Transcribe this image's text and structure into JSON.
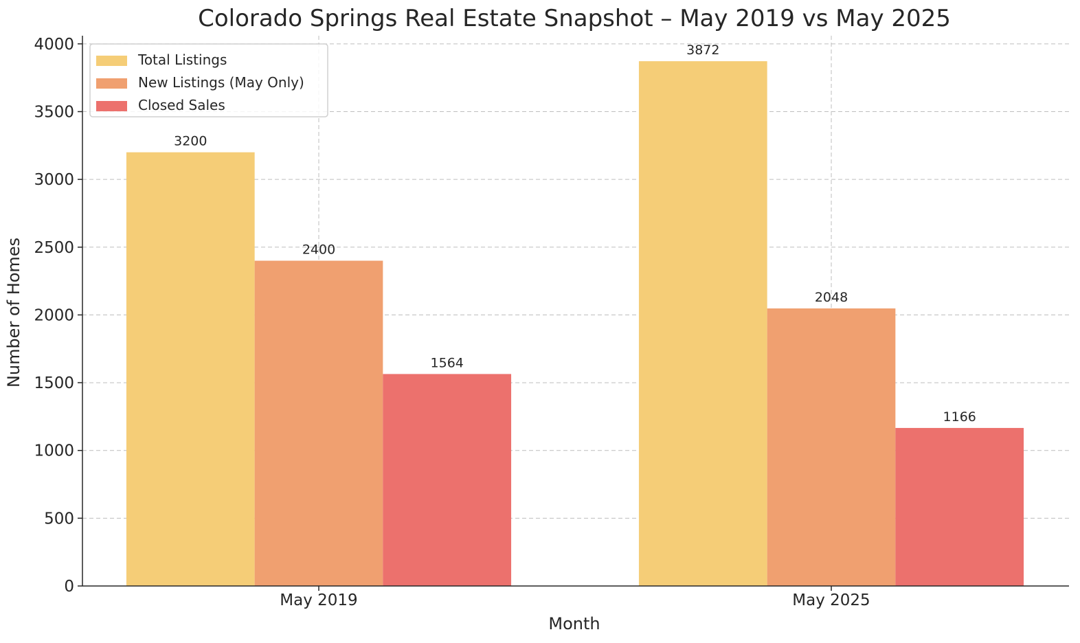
{
  "chart_data": {
    "type": "bar",
    "title": "Colorado Springs Real Estate Snapshot – May 2019 vs May 2025",
    "xlabel": "Month",
    "ylabel": "Number of Homes",
    "categories": [
      "May 2019",
      "May 2025"
    ],
    "series": [
      {
        "name": "Total Listings",
        "values": [
          3200,
          3872
        ],
        "color": "#f5cd77"
      },
      {
        "name": "New Listings (May Only)",
        "values": [
          2400,
          2048
        ],
        "color": "#f0a070"
      },
      {
        "name": "Closed Sales",
        "values": [
          1564,
          1166
        ],
        "color": "#ec716d"
      }
    ],
    "ylim": [
      0,
      4060
    ],
    "yticks": [
      0,
      500,
      1000,
      1500,
      2000,
      2500,
      3000,
      3500,
      4000
    ],
    "grid": true,
    "legend_position": "top-left",
    "data_labels": true
  }
}
